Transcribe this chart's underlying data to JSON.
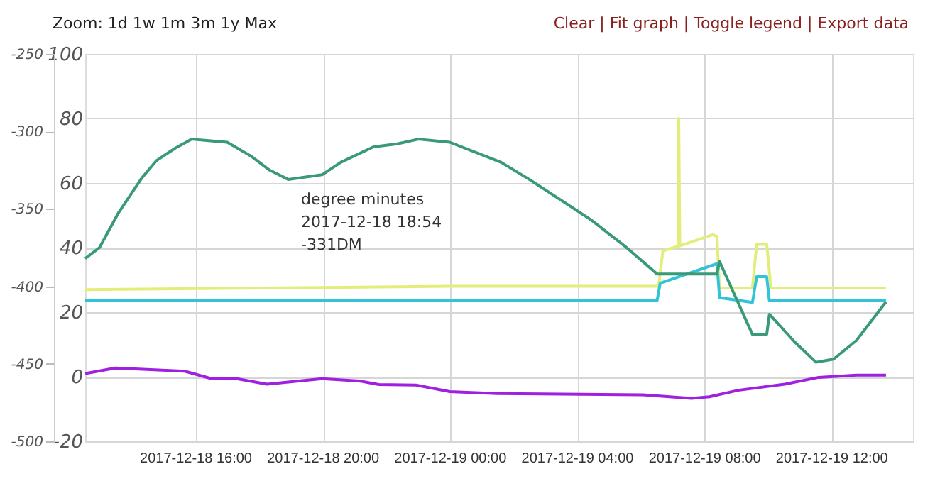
{
  "chart_data": {
    "type": "line",
    "xlim": [
      "2017-12-18T12:31",
      "2017-12-19T14:33"
    ],
    "xticks": [
      {
        "value": "2017-12-18T16:00",
        "label": "2017-12-18 16:00"
      },
      {
        "value": "2017-12-18T20:00",
        "label": "2017-12-18 20:00"
      },
      {
        "value": "2017-12-19T00:00",
        "label": "2017-12-19 00:00"
      },
      {
        "value": "2017-12-19T04:00",
        "label": "2017-12-19 04:00"
      },
      {
        "value": "2017-12-19T08:00",
        "label": "2017-12-19 08:00"
      },
      {
        "value": "2017-12-19T12:00",
        "label": "2017-12-19 12:00"
      }
    ],
    "ylim": [
      -20,
      100
    ],
    "yticks": [
      -20,
      0,
      20,
      40,
      60,
      80,
      100
    ],
    "y2lim": [
      -500,
      -250
    ],
    "y2ticks": [
      -500,
      -450,
      -400,
      -350,
      -300,
      -250
    ],
    "grid": true,
    "marker": "none",
    "line_style": "solid",
    "series": [
      {
        "color": "#3a9a78",
        "axis": "y2",
        "x": [
          "2017-12-18T12:31",
          "2017-12-18T12:58",
          "2017-12-18T13:33",
          "2017-12-18T14:18",
          "2017-12-18T14:45",
          "2017-12-18T15:20",
          "2017-12-18T15:52",
          "2017-12-18T16:24",
          "2017-12-18T16:59",
          "2017-12-18T17:44",
          "2017-12-18T18:19",
          "2017-12-18T18:54",
          "2017-12-18T19:58",
          "2017-12-18T20:33",
          "2017-12-18T21:35",
          "2017-12-18T22:20",
          "2017-12-18T23:00",
          "2017-12-18T23:59",
          "2017-12-19T01:36",
          "2017-12-19T02:29",
          "2017-12-19T04:25",
          "2017-12-19T05:29",
          "2017-12-19T06:30",
          "2017-12-19T08:23",
          "2017-12-19T08:28",
          "2017-12-19T09:30",
          "2017-12-19T09:57",
          "2017-12-19T10:02",
          "2017-12-19T10:50",
          "2017-12-19T11:30",
          "2017-12-19T12:03",
          "2017-12-19T12:46",
          "2017-12-19T13:42"
        ],
        "values": [
          -382,
          -375,
          -353,
          -330,
          -319,
          -311,
          -305,
          -306,
          -307,
          -316,
          -325,
          -331,
          -328,
          -320,
          -310,
          -308,
          -305,
          -307,
          -320,
          -331,
          -357,
          -374,
          -392,
          -392,
          -384,
          -431,
          -431,
          -418,
          -436,
          -449,
          -447,
          -435,
          -410
        ]
      },
      {
        "color": "#e3ee7a",
        "x": [
          "2017-12-18T12:31",
          "2017-12-18T23:59",
          "2017-12-19T06:33",
          "2017-12-19T06:41",
          "2017-12-19T07:11",
          "2017-12-19T07:11",
          "2017-12-19T07:13",
          "2017-12-19T08:15",
          "2017-12-19T08:23",
          "2017-12-19T08:28",
          "2017-12-19T09:30",
          "2017-12-19T09:38",
          "2017-12-19T09:57",
          "2017-12-19T10:05",
          "2017-12-19T13:42"
        ],
        "values": [
          27,
          28,
          28,
          39,
          40.5,
          80,
          40.5,
          44,
          43.5,
          27.5,
          27.5,
          41,
          41,
          27.5,
          27.5
        ]
      },
      {
        "color": "#33c3d8",
        "x": [
          "2017-12-18T12:31",
          "2017-12-19T06:30",
          "2017-12-19T06:36",
          "2017-12-19T08:23",
          "2017-12-19T08:28",
          "2017-12-19T09:30",
          "2017-12-19T09:38",
          "2017-12-19T09:57",
          "2017-12-19T10:02",
          "2017-12-19T13:42"
        ],
        "values": [
          23.5,
          23.5,
          29,
          35,
          24.5,
          23,
          31,
          31,
          23.5,
          23.5
        ]
      },
      {
        "color": "#a020e0",
        "x": [
          "2017-12-18T12:31",
          "2017-12-18T13:28",
          "2017-12-18T15:39",
          "2017-12-18T16:27",
          "2017-12-18T17:17",
          "2017-12-18T18:14",
          "2017-12-18T19:58",
          "2017-12-18T21:08",
          "2017-12-18T21:45",
          "2017-12-18T22:55",
          "2017-12-18T23:59",
          "2017-12-19T01:28",
          "2017-12-19T06:03",
          "2017-12-19T07:35",
          "2017-12-19T08:09",
          "2017-12-19T09:03",
          "2017-12-19T10:31",
          "2017-12-19T11:35",
          "2017-12-19T12:46",
          "2017-12-19T13:42"
        ],
        "values": [
          1,
          2.7,
          1.7,
          -0.5,
          -0.6,
          -2.3,
          -0.6,
          -1.3,
          -2.4,
          -2.6,
          -4.6,
          -5.2,
          -5.6,
          -6.7,
          -6.2,
          -4.2,
          -2.3,
          -0.2,
          0.5,
          0.5
        ]
      }
    ],
    "annotations": [
      "Zoom: 1d 1w 1m 3m 1y Max",
      "Clear | Fit graph | Toggle legend | Export data",
      "degree minutes\n2017-12-18 18:54\n-331DM"
    ]
  }
}
